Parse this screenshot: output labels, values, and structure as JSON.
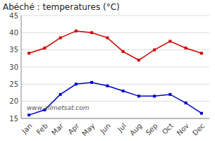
{
  "chart_data": {
    "type": "line",
    "title": "Abéché : temperatures (°C)",
    "categories": [
      "Jan",
      "Feb",
      "Mar",
      "Apr",
      "May",
      "Jun",
      "Jul",
      "Aug",
      "Sep",
      "Oct",
      "Nov",
      "Dec"
    ],
    "series": [
      {
        "color": "#cc0000",
        "marker": "square",
        "values": [
          34,
          35.5,
          38.5,
          40.5,
          40,
          38.5,
          34.5,
          32,
          35,
          37.5,
          35.5,
          34
        ]
      },
      {
        "color": "#0000cc",
        "marker": "square",
        "values": [
          16,
          17.5,
          22,
          25,
          25.5,
          24.5,
          23,
          21.5,
          21.5,
          22,
          19.5,
          16.5
        ]
      }
    ],
    "ylim": [
      15,
      45
    ],
    "yticks": [
      15,
      20,
      25,
      30,
      35,
      40,
      45
    ],
    "grid": true,
    "annotations": [
      "www.allmetsat.com"
    ]
  }
}
